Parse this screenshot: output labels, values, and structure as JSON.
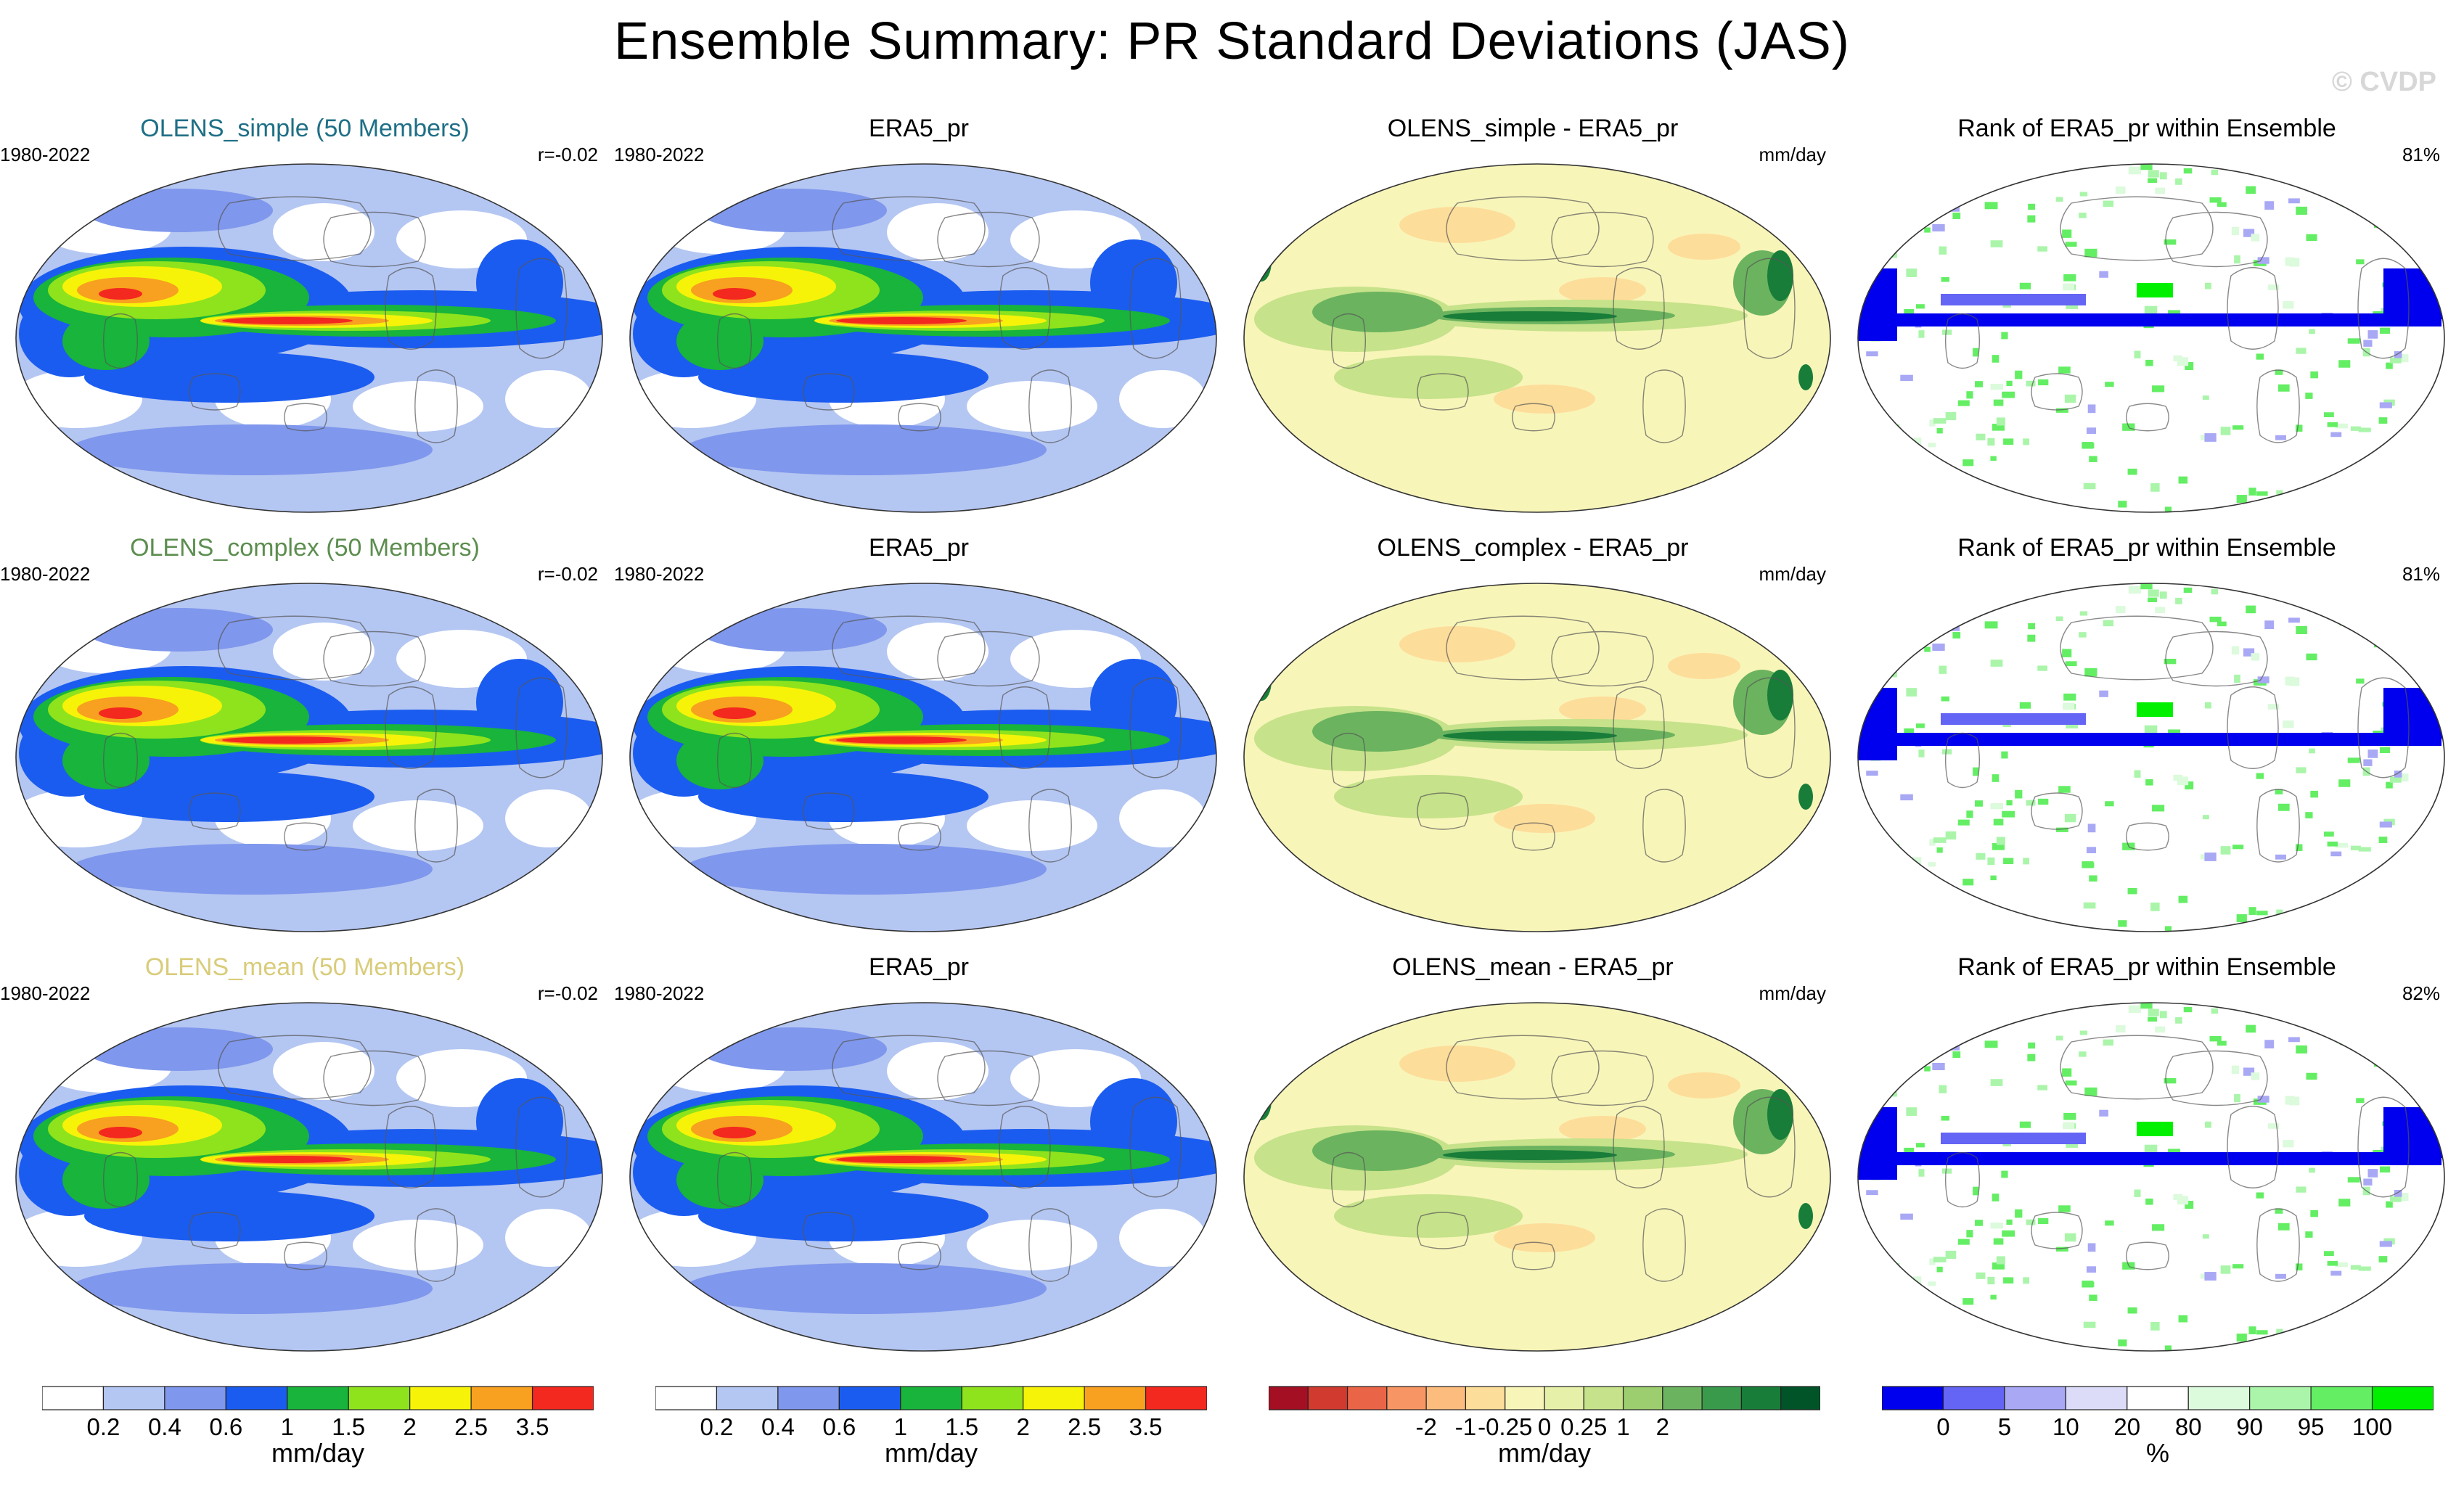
{
  "title": "Ensemble Summary: PR Standard Deviations (JAS)",
  "watermark": "© CVDP",
  "rows": [
    {
      "model_title": "OLENS_simple (50 Members)",
      "model_title_color": "#1f6f86",
      "model_period": "1980-2022",
      "model_corr": "r=-0.02",
      "obs_title": "ERA5_pr",
      "obs_period": "1980-2022",
      "diff_title": "OLENS_simple - ERA5_pr",
      "diff_units": "mm/day",
      "rank_title": "Rank of ERA5_pr within Ensemble",
      "rank_pct": "81%"
    },
    {
      "model_title": "OLENS_complex (50 Members)",
      "model_title_color": "#5c8e4f",
      "model_period": "1980-2022",
      "model_corr": "r=-0.02",
      "obs_title": "ERA5_pr",
      "obs_period": "1980-2022",
      "diff_title": "OLENS_complex - ERA5_pr",
      "diff_units": "mm/day",
      "rank_title": "Rank of ERA5_pr within Ensemble",
      "rank_pct": "81%"
    },
    {
      "model_title": "OLENS_mean (50 Members)",
      "model_title_color": "#d9cc7a",
      "model_period": "1980-2022",
      "model_corr": "r=-0.02",
      "obs_title": "ERA5_pr",
      "obs_period": "1980-2022",
      "diff_title": "OLENS_mean - ERA5_pr",
      "diff_units": "mm/day",
      "rank_title": "Rank of ERA5_pr within Ensemble",
      "rank_pct": "82%"
    }
  ],
  "colorbars": {
    "std": {
      "labels": [
        "0.2",
        "0.4",
        "0.6",
        "1",
        "1.5",
        "2",
        "2.5",
        "3.5"
      ],
      "units": "mm/day",
      "colors": [
        "#ffffff",
        "#b4c6f2",
        "#7f97ec",
        "#1b5cf0",
        "#18b43b",
        "#8ee31c",
        "#f6f309",
        "#f8a01f",
        "#f3281e"
      ]
    },
    "diff": {
      "labels": [
        "-2",
        "-1",
        "-0.25",
        "0",
        "0.25",
        "1",
        "2"
      ],
      "units": "mm/day",
      "colors": [
        "#a50f23",
        "#d13a2e",
        "#ea6447",
        "#f79664",
        "#fbbc7e",
        "#fddd9a",
        "#f8f5b9",
        "#e7f0a8",
        "#c6e28a",
        "#9ccd6e",
        "#6bb35f",
        "#3a9a4c",
        "#187d39",
        "#005428"
      ]
    },
    "rank": {
      "labels": [
        "0",
        "5",
        "10",
        "20",
        "80",
        "90",
        "95",
        "100"
      ],
      "units": "%",
      "colors": [
        "#0000ee",
        "#6464f5",
        "#a8a8f5",
        "#dcdcf9",
        "#ffffff",
        "#dcfadc",
        "#aaf5aa",
        "#64ee64",
        "#00f000"
      ]
    }
  }
}
